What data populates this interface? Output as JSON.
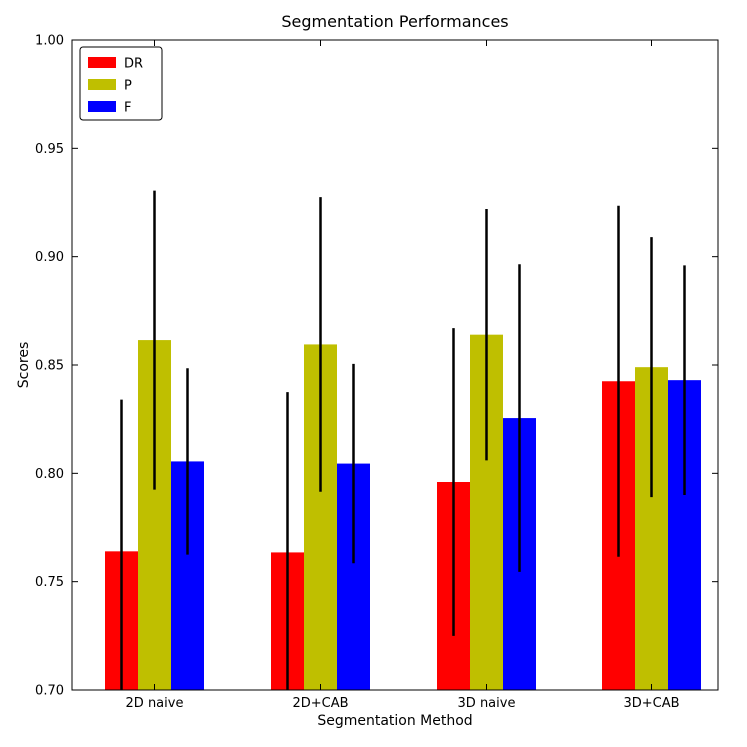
{
  "chart_data": {
    "type": "bar",
    "title": "Segmentation Performances",
    "xlabel": "Segmentation Method",
    "ylabel": "Scores",
    "ylim": [
      0.7,
      1.0
    ],
    "yticks": [
      "0.70",
      "0.75",
      "0.80",
      "0.85",
      "0.90",
      "0.95",
      "1.00"
    ],
    "categories": [
      "2D naive",
      "2D+CAB",
      "3D naive",
      "3D+CAB"
    ],
    "legend_position": "top-left",
    "series": [
      {
        "name": "DR",
        "color": "#ff0000",
        "values": [
          0.764,
          0.7635,
          0.796,
          0.8425
        ],
        "errors": [
          0.07,
          0.074,
          0.071,
          0.081
        ]
      },
      {
        "name": "P",
        "color": "#bfbf00",
        "values": [
          0.8615,
          0.8595,
          0.864,
          0.849
        ],
        "errors": [
          0.069,
          0.068,
          0.058,
          0.06
        ]
      },
      {
        "name": "F",
        "color": "#0000ff",
        "values": [
          0.8055,
          0.8045,
          0.8255,
          0.843
        ],
        "errors": [
          0.043,
          0.046,
          0.071,
          0.053
        ]
      }
    ]
  }
}
